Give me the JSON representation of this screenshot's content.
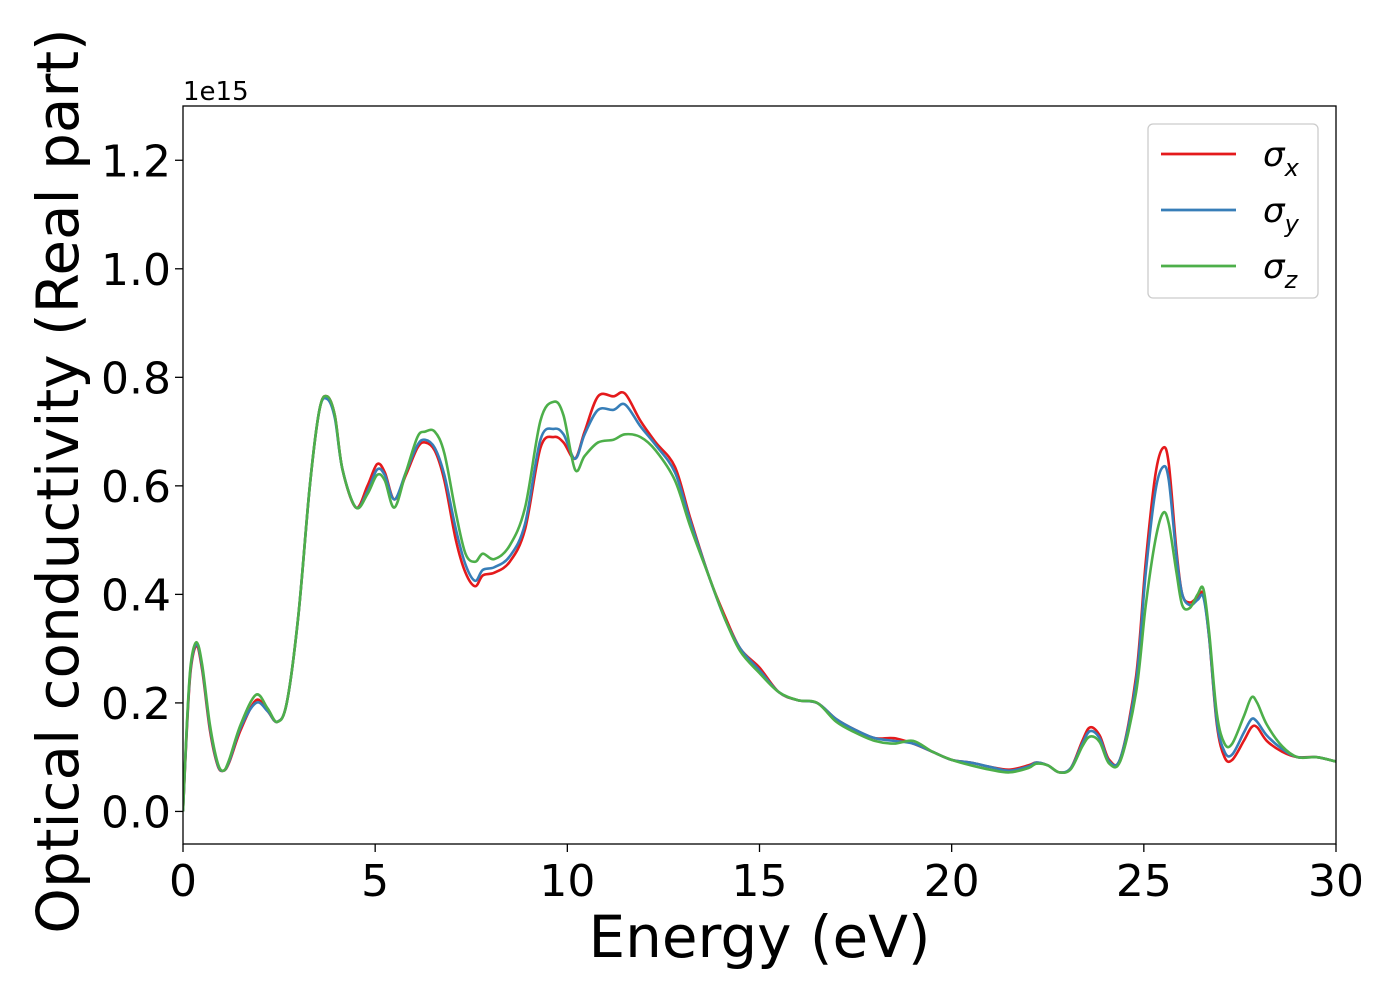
{
  "chart_data": {
    "type": "line",
    "xlabel": "Energy (eV)",
    "ylabel": "Optical conductivity (Real part)",
    "y_offset_label": "1e15",
    "xlim": [
      0,
      30
    ],
    "ylim": [
      -0.06,
      1.3
    ],
    "x_ticks": [
      0,
      5,
      10,
      15,
      20,
      25,
      30
    ],
    "x_tick_labels": [
      "0",
      "5",
      "10",
      "15",
      "20",
      "25",
      "30"
    ],
    "y_ticks": [
      0.0,
      0.2,
      0.4,
      0.6,
      0.8,
      1.0,
      1.2
    ],
    "y_tick_labels": [
      "0.0",
      "0.2",
      "0.4",
      "0.6",
      "0.8",
      "1.0",
      "1.2"
    ],
    "grid": false,
    "legend_position": "top-right",
    "x": [
      0,
      0.1,
      0.2,
      0.35,
      0.5,
      0.7,
      0.9,
      1.05,
      1.2,
      1.5,
      1.9,
      2.2,
      2.45,
      2.7,
      3.0,
      3.3,
      3.55,
      3.75,
      3.95,
      4.15,
      4.5,
      4.8,
      5.05,
      5.25,
      5.5,
      5.8,
      6.1,
      6.3,
      6.55,
      6.8,
      7.1,
      7.35,
      7.6,
      7.8,
      8.1,
      8.5,
      8.9,
      9.3,
      9.65,
      9.9,
      10.2,
      10.45,
      10.8,
      11.2,
      11.5,
      11.9,
      12.3,
      12.8,
      13.2,
      13.7,
      14.1,
      14.5,
      15.0,
      15.5,
      16.0,
      16.5,
      17.0,
      17.5,
      18.0,
      18.5,
      19.0,
      19.5,
      20.0,
      20.5,
      21.0,
      21.5,
      22.0,
      22.2,
      22.5,
      22.8,
      23.1,
      23.4,
      23.6,
      23.85,
      24.1,
      24.4,
      24.8,
      25.05,
      25.3,
      25.5,
      25.65,
      25.85,
      26.0,
      26.2,
      26.4,
      26.55,
      26.7,
      26.9,
      27.1,
      27.3,
      27.6,
      27.8,
      27.95,
      28.2,
      28.6,
      29.0,
      29.5,
      30.0
    ],
    "series": [
      {
        "name": "σx",
        "color": "#e41a1c",
        "values": [
          0.0,
          0.15,
          0.26,
          0.305,
          0.26,
          0.15,
          0.085,
          0.075,
          0.09,
          0.15,
          0.205,
          0.185,
          0.165,
          0.2,
          0.36,
          0.6,
          0.74,
          0.765,
          0.73,
          0.63,
          0.56,
          0.6,
          0.64,
          0.625,
          0.575,
          0.62,
          0.67,
          0.68,
          0.665,
          0.61,
          0.5,
          0.44,
          0.415,
          0.435,
          0.44,
          0.46,
          0.52,
          0.67,
          0.69,
          0.68,
          0.65,
          0.7,
          0.765,
          0.765,
          0.77,
          0.72,
          0.68,
          0.635,
          0.54,
          0.43,
          0.36,
          0.3,
          0.265,
          0.22,
          0.205,
          0.2,
          0.17,
          0.15,
          0.135,
          0.135,
          0.125,
          0.11,
          0.095,
          0.09,
          0.082,
          0.077,
          0.085,
          0.09,
          0.085,
          0.072,
          0.08,
          0.13,
          0.155,
          0.14,
          0.095,
          0.1,
          0.25,
          0.46,
          0.62,
          0.67,
          0.64,
          0.48,
          0.4,
          0.385,
          0.395,
          0.4,
          0.32,
          0.16,
          0.1,
          0.095,
          0.13,
          0.155,
          0.155,
          0.13,
          0.11,
          0.1,
          0.1,
          0.092
        ]
      },
      {
        "name": "σy",
        "color": "#377eb8",
        "values": [
          0.0,
          0.155,
          0.265,
          0.308,
          0.265,
          0.155,
          0.087,
          0.075,
          0.092,
          0.155,
          0.2,
          0.185,
          0.165,
          0.2,
          0.36,
          0.6,
          0.74,
          0.76,
          0.725,
          0.63,
          0.56,
          0.59,
          0.63,
          0.62,
          0.575,
          0.625,
          0.675,
          0.685,
          0.67,
          0.62,
          0.52,
          0.455,
          0.425,
          0.445,
          0.45,
          0.47,
          0.53,
          0.685,
          0.705,
          0.695,
          0.65,
          0.695,
          0.74,
          0.74,
          0.75,
          0.71,
          0.675,
          0.625,
          0.535,
          0.43,
          0.355,
          0.3,
          0.26,
          0.22,
          0.205,
          0.2,
          0.17,
          0.15,
          0.135,
          0.13,
          0.125,
          0.11,
          0.095,
          0.09,
          0.082,
          0.075,
          0.083,
          0.09,
          0.085,
          0.072,
          0.08,
          0.125,
          0.148,
          0.135,
          0.092,
          0.1,
          0.24,
          0.44,
          0.59,
          0.635,
          0.61,
          0.47,
          0.4,
          0.38,
          0.39,
          0.395,
          0.32,
          0.165,
          0.11,
          0.105,
          0.145,
          0.17,
          0.165,
          0.14,
          0.115,
          0.1,
          0.1,
          0.092
        ]
      },
      {
        "name": "σz",
        "color": "#4daf4a",
        "values": [
          0.0,
          0.16,
          0.27,
          0.312,
          0.27,
          0.16,
          0.09,
          0.075,
          0.095,
          0.16,
          0.215,
          0.19,
          0.165,
          0.2,
          0.36,
          0.6,
          0.74,
          0.765,
          0.73,
          0.63,
          0.56,
          0.585,
          0.62,
          0.61,
          0.56,
          0.625,
          0.69,
          0.7,
          0.7,
          0.66,
          0.55,
          0.475,
          0.46,
          0.475,
          0.465,
          0.49,
          0.56,
          0.72,
          0.755,
          0.73,
          0.63,
          0.655,
          0.68,
          0.685,
          0.695,
          0.69,
          0.665,
          0.61,
          0.525,
          0.43,
          0.355,
          0.295,
          0.255,
          0.22,
          0.205,
          0.2,
          0.165,
          0.145,
          0.13,
          0.125,
          0.13,
          0.11,
          0.095,
          0.085,
          0.077,
          0.072,
          0.08,
          0.088,
          0.085,
          0.072,
          0.078,
          0.12,
          0.138,
          0.128,
          0.088,
          0.095,
          0.22,
          0.38,
          0.5,
          0.55,
          0.53,
          0.44,
          0.38,
          0.375,
          0.4,
          0.41,
          0.33,
          0.18,
          0.125,
          0.125,
          0.175,
          0.21,
          0.2,
          0.16,
          0.12,
          0.1,
          0.1,
          0.092
        ]
      }
    ],
    "legend": {
      "entries": [
        {
          "base": "σ",
          "sub": "x",
          "color": "#e41a1c"
        },
        {
          "base": "σ",
          "sub": "y",
          "color": "#377eb8"
        },
        {
          "base": "σ",
          "sub": "z",
          "color": "#4daf4a"
        }
      ]
    }
  }
}
